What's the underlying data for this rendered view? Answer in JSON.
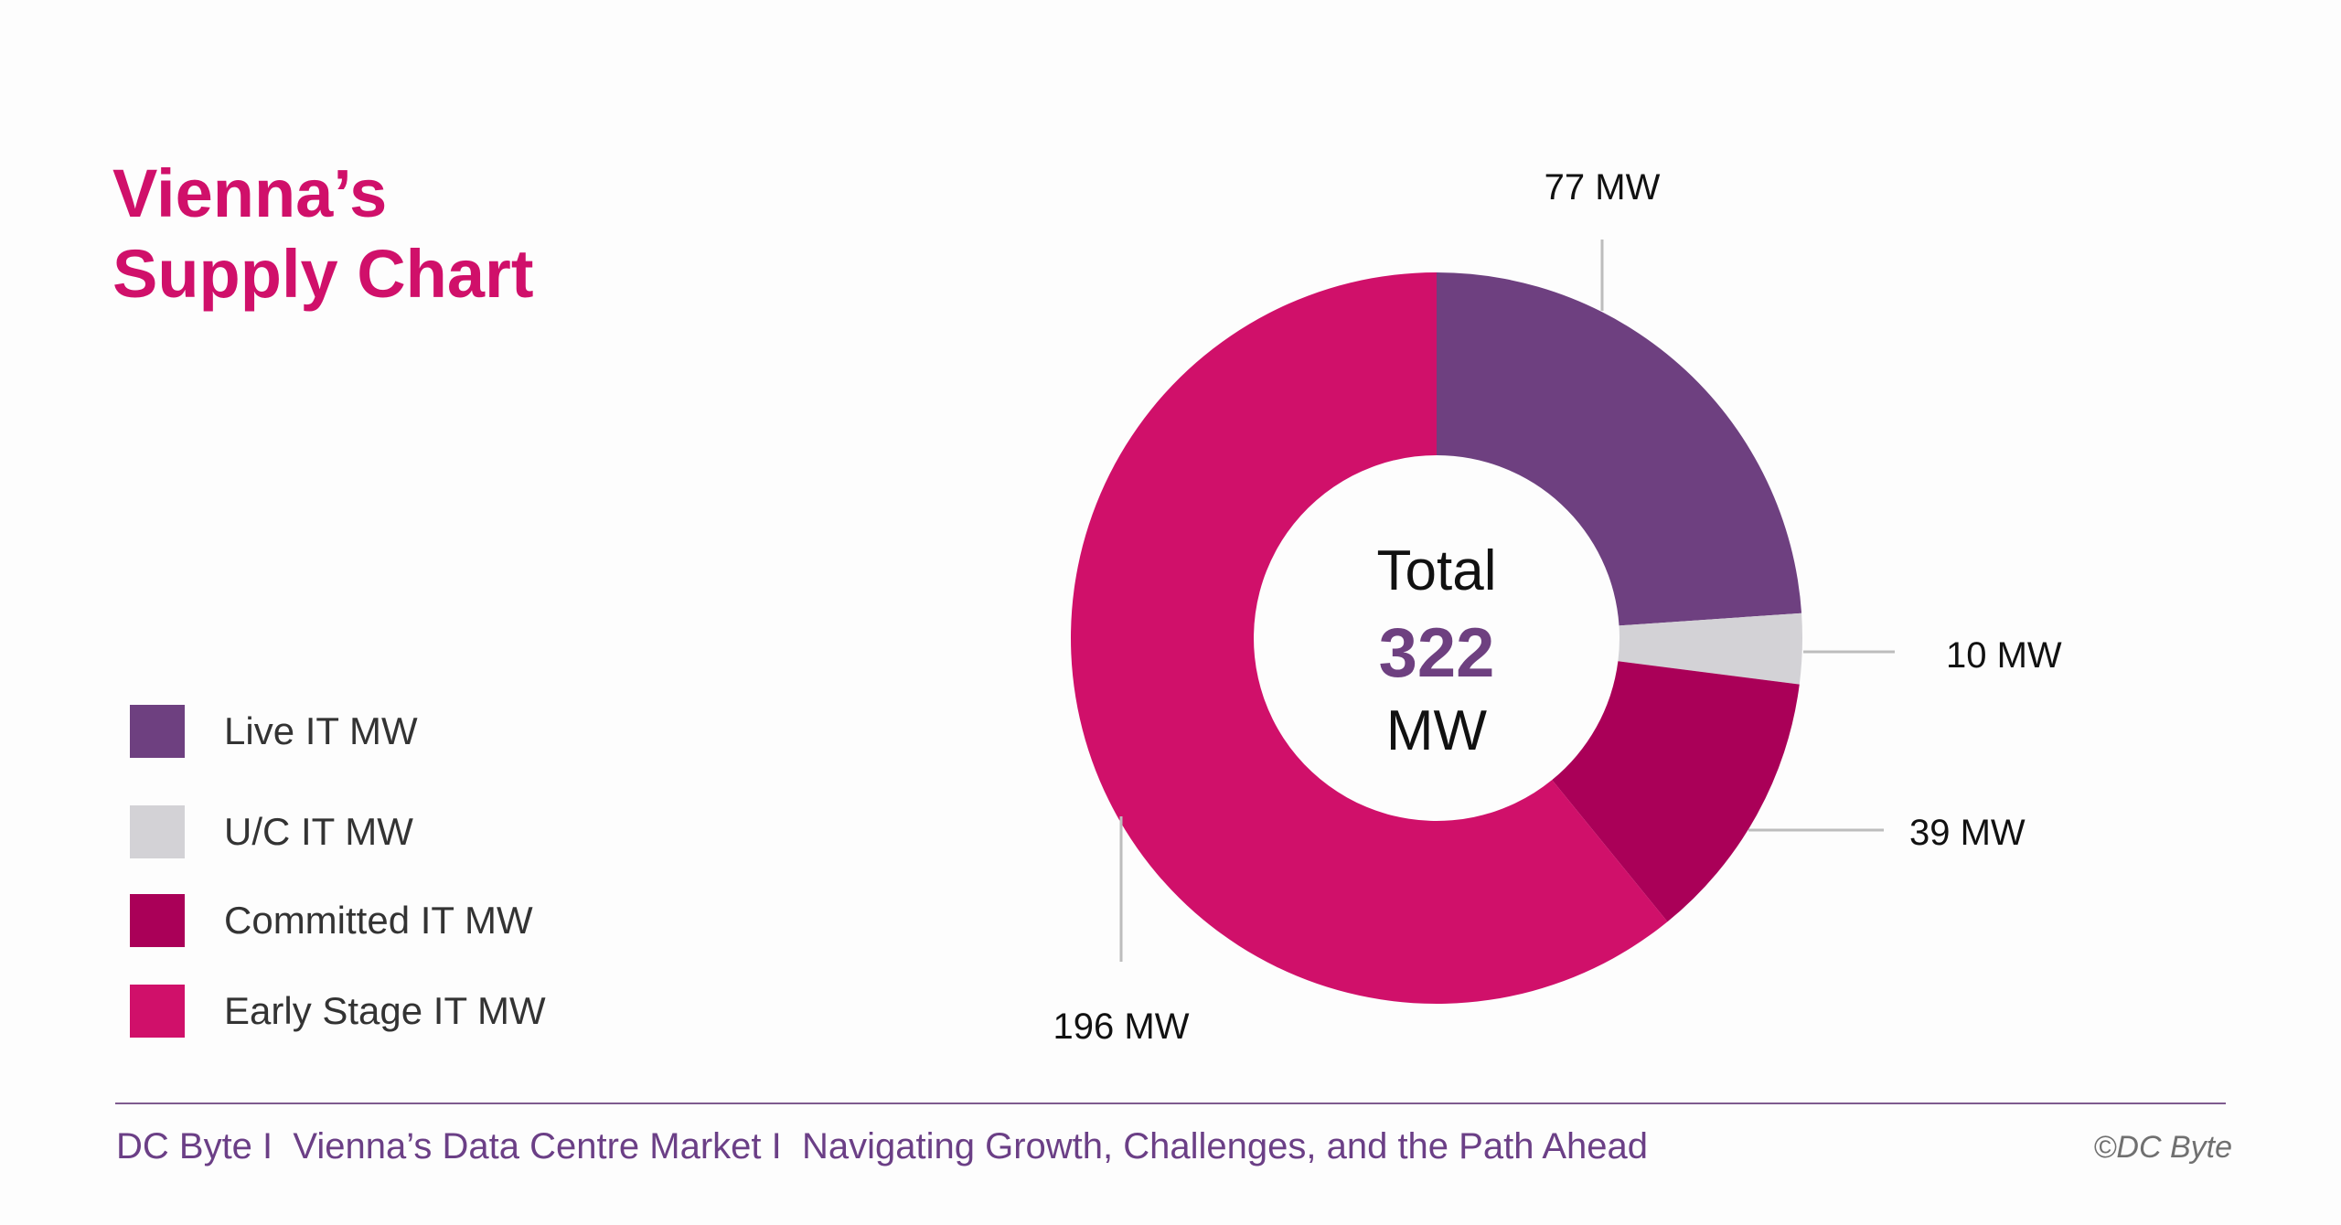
{
  "title": "Vienna’s\nSupply Chart",
  "chart_data": {
    "type": "pie",
    "variant": "donut",
    "title": "Vienna’s Supply Chart",
    "categories": [
      "Live IT MW",
      "U/C IT MW",
      "Committed IT MW",
      "Early Stage IT MW"
    ],
    "values": [
      77,
      10,
      39,
      196
    ],
    "colors": [
      "#6e4080",
      "#d3d2d6",
      "#aa0058",
      "#d0106a"
    ],
    "data_labels": [
      "77 MW",
      "10 MW",
      "39 MW",
      "196 MW"
    ],
    "center_label": {
      "top": "Total",
      "value": "322",
      "unit": "MW"
    },
    "center_value_color": "#6e4080",
    "legend_position": "left"
  },
  "footer": {
    "text": "DC Byte I  Vienna’s Data Centre Market I  Navigating Growth, Challenges, and the Path Ahead",
    "copyright": "©DC Byte"
  }
}
